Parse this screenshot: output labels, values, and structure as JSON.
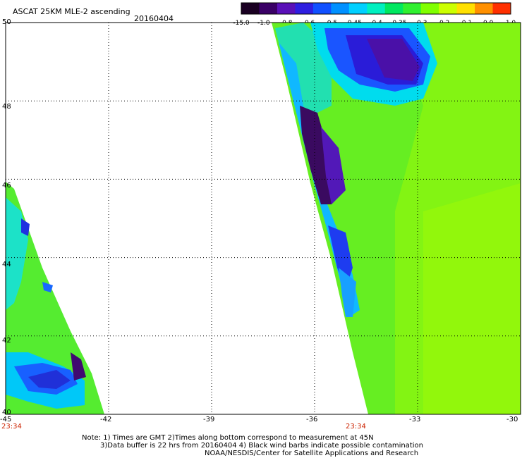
{
  "header": {
    "title": "ASCAT 25KM MLE-2 ascending",
    "date": "20160404"
  },
  "colorbar": {
    "labels": [
      "-15.0",
      "-1.0",
      "-0.8",
      "-0.6",
      "-0.5",
      "-0.45",
      "-0.4",
      "-0.35",
      "-0.3",
      "-0.2",
      "-0.1",
      "0.0",
      "1.0"
    ],
    "colors": [
      "#1a0022",
      "#3a0066",
      "#5a10b8",
      "#2e1ee0",
      "#1050ff",
      "#0090ff",
      "#00d0ff",
      "#00f0c0",
      "#00e860",
      "#30f030",
      "#80ff00",
      "#ccff00",
      "#ffe000",
      "#ff9000",
      "#ff3000"
    ]
  },
  "map": {
    "lat_labels": [
      "50",
      "48",
      "46",
      "44",
      "42",
      "40"
    ],
    "lon_labels": [
      "-45",
      "-42",
      "-39",
      "-36",
      "-33",
      "-30"
    ],
    "lat_range": [
      40,
      50
    ],
    "lon_range": [
      -45,
      -30
    ],
    "time_labels": [
      {
        "text": "23:34",
        "lon": -45
      },
      {
        "text": "23:34",
        "lon": -35.5
      }
    ]
  },
  "notes": {
    "line1": "Note: 1) Times are GMT 2)Times along bottom correspond to measurement at 45N",
    "line2": "3)Data buffer is 22 hrs from 20160404 4) Black wind barbs indicate possible contamination",
    "line3": "NOAA/NESDIS/Center for Satellite Applications and Research"
  }
}
